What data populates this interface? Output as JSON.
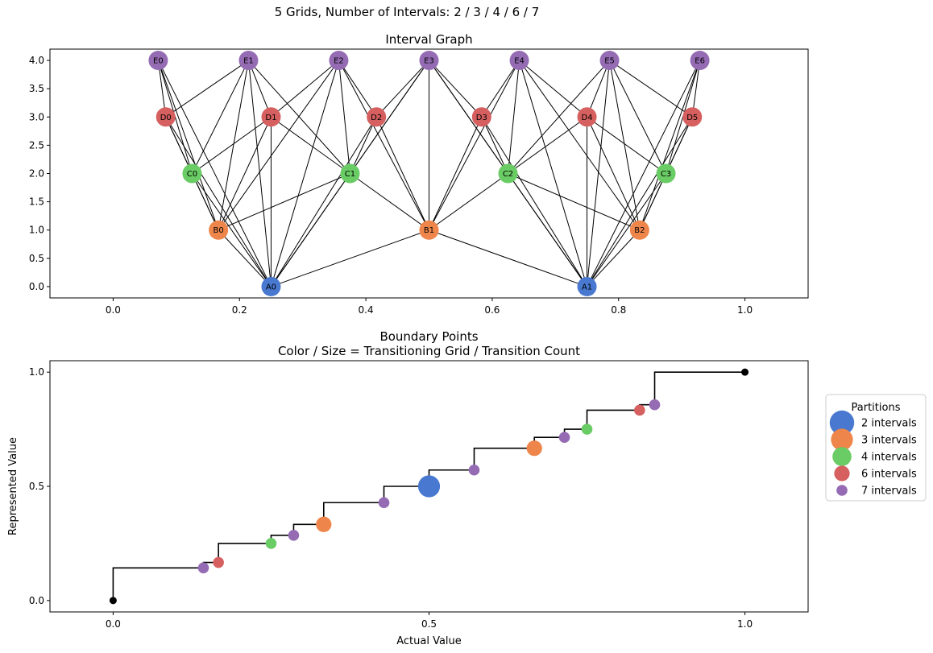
{
  "suptitle": "5 Grids, Number of Intervals: 2 / 3 / 4 / 6 / 7",
  "chart_data": [
    {
      "type": "scatter",
      "title": "Interval Graph",
      "xlabel": "",
      "ylabel": "",
      "xlim": [
        -0.1,
        1.1
      ],
      "ylim": [
        -0.2,
        4.2
      ],
      "xticks": [
        "0.0",
        "0.2",
        "0.4",
        "0.6",
        "0.8",
        "1.0"
      ],
      "yticks": [
        "0.0",
        "0.5",
        "1.0",
        "1.5",
        "2.0",
        "2.5",
        "3.0",
        "3.5",
        "4.0"
      ],
      "grid": false,
      "levels": [
        {
          "prefix": "A",
          "n": 2,
          "color": "#4878d0"
        },
        {
          "prefix": "B",
          "n": 3,
          "color": "#ee854a"
        },
        {
          "prefix": "C",
          "n": 4,
          "color": "#6acc64"
        },
        {
          "prefix": "D",
          "n": 6,
          "color": "#d65f5f"
        },
        {
          "prefix": "E",
          "n": 7,
          "color": "#956cb4"
        }
      ],
      "nodes": [
        {
          "label": "A0",
          "x": 0.25,
          "y": 0
        },
        {
          "label": "A1",
          "x": 0.75,
          "y": 0
        },
        {
          "label": "B0",
          "x": 0.1667,
          "y": 1
        },
        {
          "label": "B1",
          "x": 0.5,
          "y": 1
        },
        {
          "label": "B2",
          "x": 0.8333,
          "y": 1
        },
        {
          "label": "C0",
          "x": 0.125,
          "y": 2
        },
        {
          "label": "C1",
          "x": 0.375,
          "y": 2
        },
        {
          "label": "C2",
          "x": 0.625,
          "y": 2
        },
        {
          "label": "C3",
          "x": 0.875,
          "y": 2
        },
        {
          "label": "D0",
          "x": 0.0833,
          "y": 3
        },
        {
          "label": "D1",
          "x": 0.25,
          "y": 3
        },
        {
          "label": "D2",
          "x": 0.4167,
          "y": 3
        },
        {
          "label": "D3",
          "x": 0.5833,
          "y": 3
        },
        {
          "label": "D4",
          "x": 0.75,
          "y": 3
        },
        {
          "label": "D5",
          "x": 0.9167,
          "y": 3
        },
        {
          "label": "E0",
          "x": 0.0714,
          "y": 4
        },
        {
          "label": "E1",
          "x": 0.2143,
          "y": 4
        },
        {
          "label": "E2",
          "x": 0.3571,
          "y": 4
        },
        {
          "label": "E3",
          "x": 0.5,
          "y": 4
        },
        {
          "label": "E4",
          "x": 0.6429,
          "y": 4
        },
        {
          "label": "E5",
          "x": 0.7857,
          "y": 4
        },
        {
          "label": "E6",
          "x": 0.9286,
          "y": 4
        }
      ]
    },
    {
      "type": "scatter",
      "title": "Boundary Points",
      "subtitle": "Color / Size = Transitioning Grid / Transition Count",
      "xlabel": "Actual Value",
      "ylabel": "Represented Value",
      "xlim": [
        -0.1,
        1.1
      ],
      "ylim": [
        -0.05,
        1.05
      ],
      "xticks": [
        "0.0",
        "0.5",
        "1.0"
      ],
      "yticks": [
        "0.0",
        "0.5",
        "1.0"
      ],
      "grid": false,
      "legend_placement": "outside-right",
      "legend": {
        "title": "Partitions",
        "items": [
          {
            "label": "2 intervals",
            "color": "#4878d0",
            "count": 5
          },
          {
            "label": "3 intervals",
            "color": "#ee854a",
            "count": 4
          },
          {
            "label": "4 intervals",
            "color": "#6acc64",
            "count": 3
          },
          {
            "label": "6 intervals",
            "color": "#d65f5f",
            "count": 2
          },
          {
            "label": "7 intervals",
            "color": "#956cb4",
            "count": 1
          }
        ]
      },
      "step_points": [
        {
          "x": 0,
          "y": 0
        },
        {
          "x": 0.1429,
          "y": 0.1429
        },
        {
          "x": 0.1667,
          "y": 0.1667
        },
        {
          "x": 0.25,
          "y": 0.25
        },
        {
          "x": 0.2857,
          "y": 0.2857
        },
        {
          "x": 0.3333,
          "y": 0.3333
        },
        {
          "x": 0.4286,
          "y": 0.4286
        },
        {
          "x": 0.5,
          "y": 0.5
        },
        {
          "x": 0.5714,
          "y": 0.5714
        },
        {
          "x": 0.6667,
          "y": 0.6667
        },
        {
          "x": 0.7143,
          "y": 0.7143
        },
        {
          "x": 0.75,
          "y": 0.75
        },
        {
          "x": 0.8333,
          "y": 0.8333
        },
        {
          "x": 0.8571,
          "y": 0.8571
        },
        {
          "x": 1,
          "y": 1
        }
      ],
      "boundary_points": [
        {
          "x": 0.1429,
          "y": 0.1429,
          "partition": "7 intervals",
          "count": 1
        },
        {
          "x": 0.1667,
          "y": 0.1667,
          "partition": "6 intervals",
          "count": 1
        },
        {
          "x": 0.25,
          "y": 0.25,
          "partition": "4 intervals",
          "count": 1
        },
        {
          "x": 0.2857,
          "y": 0.2857,
          "partition": "7 intervals",
          "count": 1
        },
        {
          "x": 0.3333,
          "y": 0.3333,
          "partition": "3 intervals",
          "count": 2
        },
        {
          "x": 0.4286,
          "y": 0.4286,
          "partition": "7 intervals",
          "count": 1
        },
        {
          "x": 0.5,
          "y": 0.5,
          "partition": "2 intervals",
          "count": 4
        },
        {
          "x": 0.5714,
          "y": 0.5714,
          "partition": "7 intervals",
          "count": 1
        },
        {
          "x": 0.6667,
          "y": 0.6667,
          "partition": "3 intervals",
          "count": 2
        },
        {
          "x": 0.7143,
          "y": 0.7143,
          "partition": "7 intervals",
          "count": 1
        },
        {
          "x": 0.75,
          "y": 0.75,
          "partition": "4 intervals",
          "count": 1
        },
        {
          "x": 0.8333,
          "y": 0.8333,
          "partition": "6 intervals",
          "count": 1
        },
        {
          "x": 0.8571,
          "y": 0.8571,
          "partition": "7 intervals",
          "count": 1
        }
      ],
      "endpoints": [
        {
          "x": 0,
          "y": 0,
          "color": "#000000"
        },
        {
          "x": 1,
          "y": 1,
          "color": "#000000"
        }
      ]
    }
  ]
}
